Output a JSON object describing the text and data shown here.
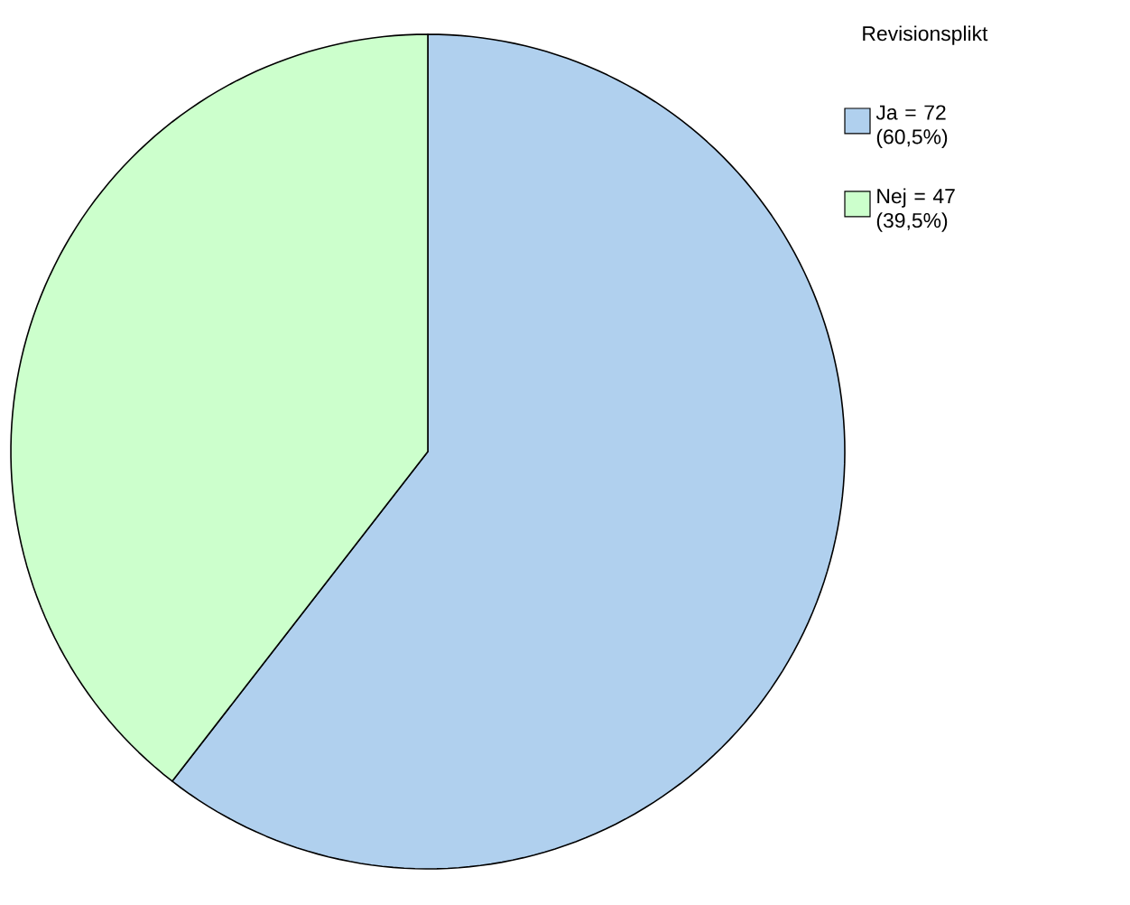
{
  "chart_data": {
    "type": "pie",
    "legend_title": "Revisionsplikt",
    "categories": [
      "Ja = 72 (60,5%)",
      "Nej = 47 (39,5%)"
    ],
    "values": [
      72,
      47
    ],
    "colors": [
      "#b0d0ee",
      "#ccffcc"
    ],
    "legend": "top right"
  }
}
